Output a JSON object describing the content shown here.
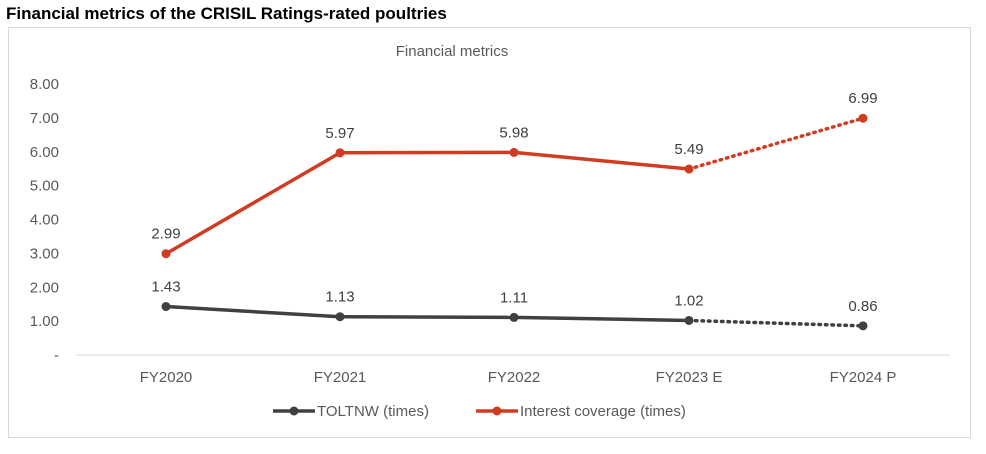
{
  "page_title": "Financial metrics of the CRISIL Ratings-rated poultries",
  "chart_data": {
    "type": "line",
    "title": "Financial metrics",
    "xlabel": "",
    "ylabel": "",
    "categories": [
      "FY2020",
      "FY2021",
      "FY2022",
      "FY2023 E",
      "FY2024 P"
    ],
    "ylim": [
      0,
      8
    ],
    "yticks": [
      0,
      1,
      2,
      3,
      4,
      5,
      6,
      7,
      8
    ],
    "ytick_labels": [
      "-",
      "1.00",
      "2.00",
      "3.00",
      "4.00",
      "5.00",
      "6.00",
      "7.00",
      "8.00"
    ],
    "grid": false,
    "legend_position": "bottom",
    "series": [
      {
        "name": "TOLTNW (times)",
        "values": [
          1.43,
          1.13,
          1.11,
          1.02,
          0.86
        ],
        "labels": [
          "1.43",
          "1.13",
          "1.11",
          "1.02",
          "0.86"
        ],
        "color": "#404040",
        "dotted_segment_after_index": 3
      },
      {
        "name": "Interest coverage (times)",
        "values": [
          2.99,
          5.97,
          5.98,
          5.49,
          6.99
        ],
        "labels": [
          "2.99",
          "5.97",
          "5.98",
          "5.49",
          "6.99"
        ],
        "color": "#d13b1f",
        "dotted_segment_after_index": 3
      }
    ]
  }
}
